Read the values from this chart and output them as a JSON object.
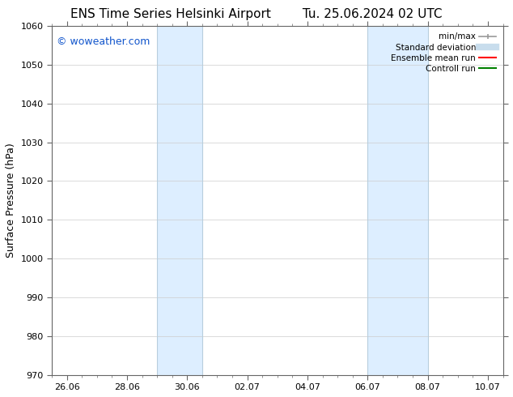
{
  "title_left": "ENS Time Series Helsinki Airport",
  "title_right": "Tu. 25.06.2024 02 UTC",
  "ylabel": "Surface Pressure (hPa)",
  "ylim": [
    970,
    1060
  ],
  "yticks": [
    970,
    980,
    990,
    1000,
    1010,
    1020,
    1030,
    1040,
    1050,
    1060
  ],
  "xlim": [
    0,
    15
  ],
  "xtick_labels": [
    "26.06",
    "28.06",
    "30.06",
    "02.07",
    "04.07",
    "06.07",
    "08.07",
    "10.07"
  ],
  "xtick_positions": [
    0.5,
    2.5,
    4.5,
    6.5,
    8.5,
    10.5,
    12.5,
    14.5
  ],
  "shaded_bands": [
    {
      "x_start": 3.5,
      "x_end": 5.0,
      "color": "#ddeeff"
    },
    {
      "x_start": 10.5,
      "x_end": 12.5,
      "color": "#ddeeff"
    }
  ],
  "band_vlines": [
    {
      "x": 3.5
    },
    {
      "x": 5.0
    },
    {
      "x": 10.5
    },
    {
      "x": 12.5
    }
  ],
  "watermark_text": "© woweather.com",
  "watermark_color": "#1155cc",
  "watermark_fontsize": 9,
  "legend_items": [
    {
      "label": "min/max",
      "color": "#999999",
      "lw": 1.5
    },
    {
      "label": "Standard deviation",
      "color": "#c8dded",
      "lw": 6
    },
    {
      "label": "Ensemble mean run",
      "color": "red",
      "lw": 1.5
    },
    {
      "label": "Controll run",
      "color": "green",
      "lw": 1.5
    }
  ],
  "bg_color": "#ffffff",
  "plot_bg_color": "#ffffff",
  "grid_color": "#cccccc",
  "title_fontsize": 11,
  "ylabel_fontsize": 9,
  "tick_fontsize": 8,
  "legend_fontsize": 7.5,
  "watermark_fs": 9
}
